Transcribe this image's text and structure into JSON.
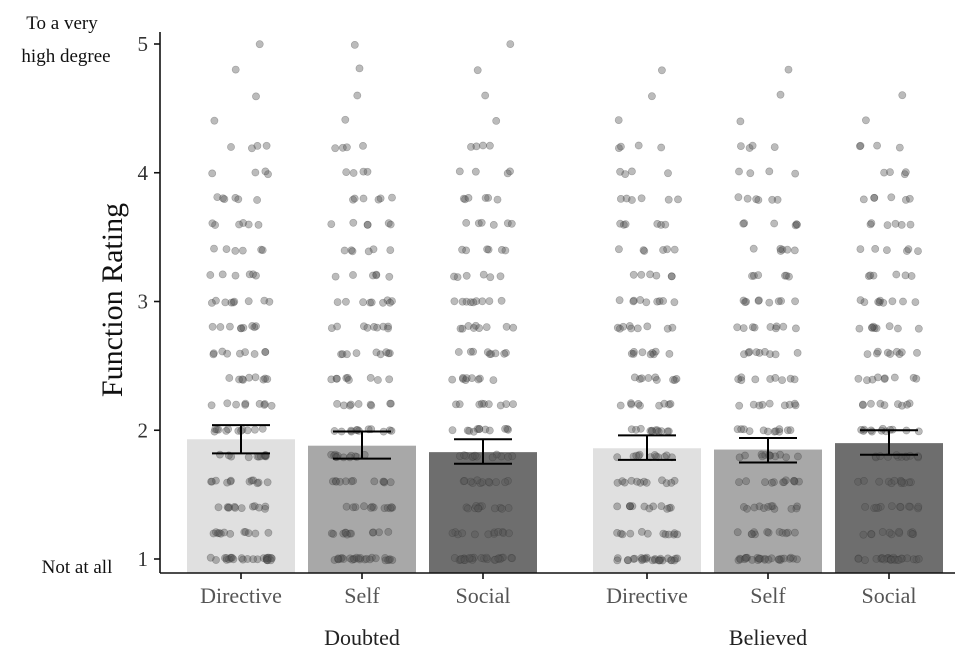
{
  "chart_data": {
    "type": "bar",
    "ylabel": "Function Rating",
    "ylim": [
      1,
      5
    ],
    "y_ticks": [
      "1",
      "2",
      "3",
      "4",
      "5"
    ],
    "y_anchor_labels": {
      "top": [
        "To a very",
        "high degree"
      ],
      "bottom": "Not at all"
    },
    "groups": [
      "Doubted",
      "Believed"
    ],
    "categories": [
      "Directive",
      "Self",
      "Social"
    ],
    "bar_colors": [
      "#e0e0e0",
      "#a8a8a8",
      "#6e6e6e"
    ],
    "bars": [
      {
        "group": "Doubted",
        "category": "Directive",
        "value": 1.93,
        "ci_low": 1.82,
        "ci_high": 2.04
      },
      {
        "group": "Doubted",
        "category": "Self",
        "value": 1.88,
        "ci_low": 1.78,
        "ci_high": 1.99
      },
      {
        "group": "Doubted",
        "category": "Social",
        "value": 1.83,
        "ci_low": 1.74,
        "ci_high": 1.93
      },
      {
        "group": "Believed",
        "category": "Directive",
        "value": 1.86,
        "ci_low": 1.77,
        "ci_high": 1.96
      },
      {
        "group": "Believed",
        "category": "Self",
        "value": 1.85,
        "ci_low": 1.75,
        "ci_high": 1.94
      },
      {
        "group": "Believed",
        "category": "Social",
        "value": 1.9,
        "ci_low": 1.81,
        "ci_high": 2.0
      }
    ],
    "jitter_points": {
      "type": "scatter",
      "possible_values": [
        1.0,
        1.2,
        1.4,
        1.6,
        1.8,
        2.0,
        2.2,
        2.4,
        2.6,
        2.8,
        3.0,
        3.2,
        3.4,
        3.6,
        3.8,
        4.0,
        4.2,
        4.4,
        4.6,
        4.8,
        5.0
      ],
      "max_values": [
        5.0,
        5.0,
        5.0,
        4.8,
        4.8,
        4.6
      ],
      "point_color": "#555555",
      "point_opacity": 0.4
    },
    "grid": false,
    "legend": "none"
  }
}
